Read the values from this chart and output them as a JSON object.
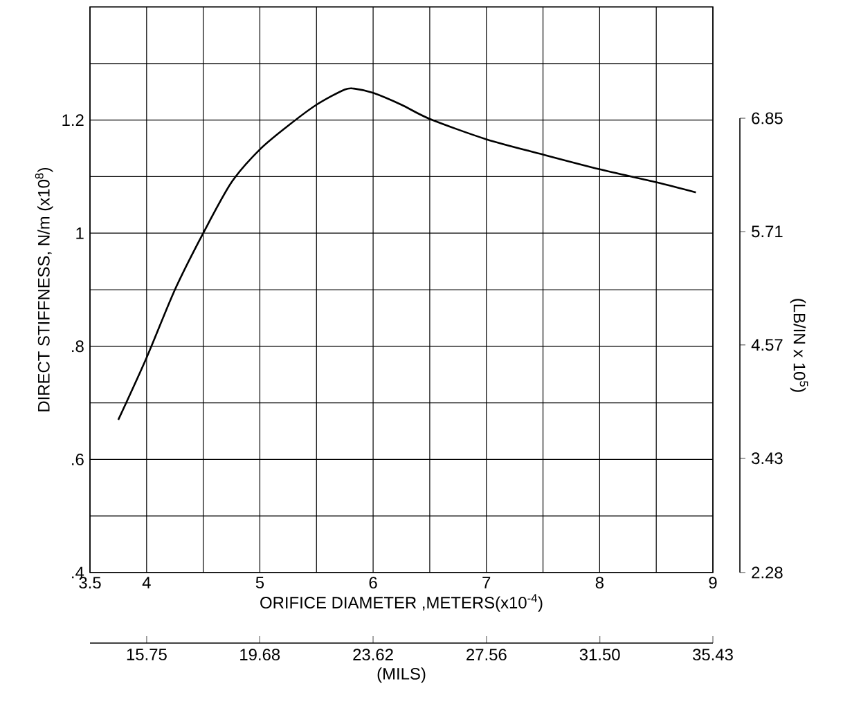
{
  "chart_data": {
    "type": "line",
    "xlabel": "ORIFICE DIAMETER ,METERS(x10$^{-4}$)",
    "ylabel": "DIRECT STIFFNESS, N/m (x10$^{8}$)",
    "y2label": "(LB/IN x 10$^{5}$)",
    "x2label": "(MILS)",
    "xlim": [
      3.5,
      9
    ],
    "ylim": [
      0.4,
      1.4
    ],
    "xticks": [
      3.5,
      4,
      {
        "value": 4.5,
        "label": null
      },
      5,
      {
        "value": 5.5,
        "label": null
      },
      6,
      {
        "value": 6.5,
        "label": null
      },
      7,
      {
        "value": 7.5,
        "label": null
      },
      8,
      {
        "value": 8.5,
        "label": null
      },
      9
    ],
    "yticks": [
      {
        "value": 0.4,
        "label": ".4"
      },
      {
        "value": 0.5,
        "label": null
      },
      {
        "value": 0.6,
        "label": ".6"
      },
      {
        "value": 0.7,
        "label": null
      },
      {
        "value": 0.8,
        "label": ".8"
      },
      {
        "value": 0.9,
        "label": null
      },
      1,
      {
        "value": 1.1,
        "label": null
      },
      1.2,
      {
        "value": 1.3,
        "label": null
      }
    ],
    "y2lim": [
      2.28,
      6.85
    ],
    "y2ticks": [
      2.28,
      3.43,
      4.57,
      5.71,
      6.85
    ],
    "x2lim": [
      13.78,
      35.43
    ],
    "x2ticks": [
      15.75,
      19.68,
      23.62,
      27.56,
      {
        "value": 31.5,
        "label": "31.50"
      },
      35.43
    ],
    "grid": true,
    "marker": "none",
    "series": [
      {
        "color": "#000000",
        "x": [
          3.75,
          4.0,
          4.25,
          4.5,
          4.75,
          5.0,
          5.25,
          5.5,
          5.75,
          5.85,
          6.0,
          6.25,
          6.5,
          7.0,
          7.5,
          8.0,
          8.5,
          8.85
        ],
        "values": [
          0.67,
          0.78,
          0.9,
          1.0,
          1.09,
          1.148,
          1.19,
          1.227,
          1.254,
          1.255,
          1.248,
          1.227,
          1.202,
          1.166,
          1.139,
          1.113,
          1.09,
          1.072
        ]
      }
    ]
  }
}
